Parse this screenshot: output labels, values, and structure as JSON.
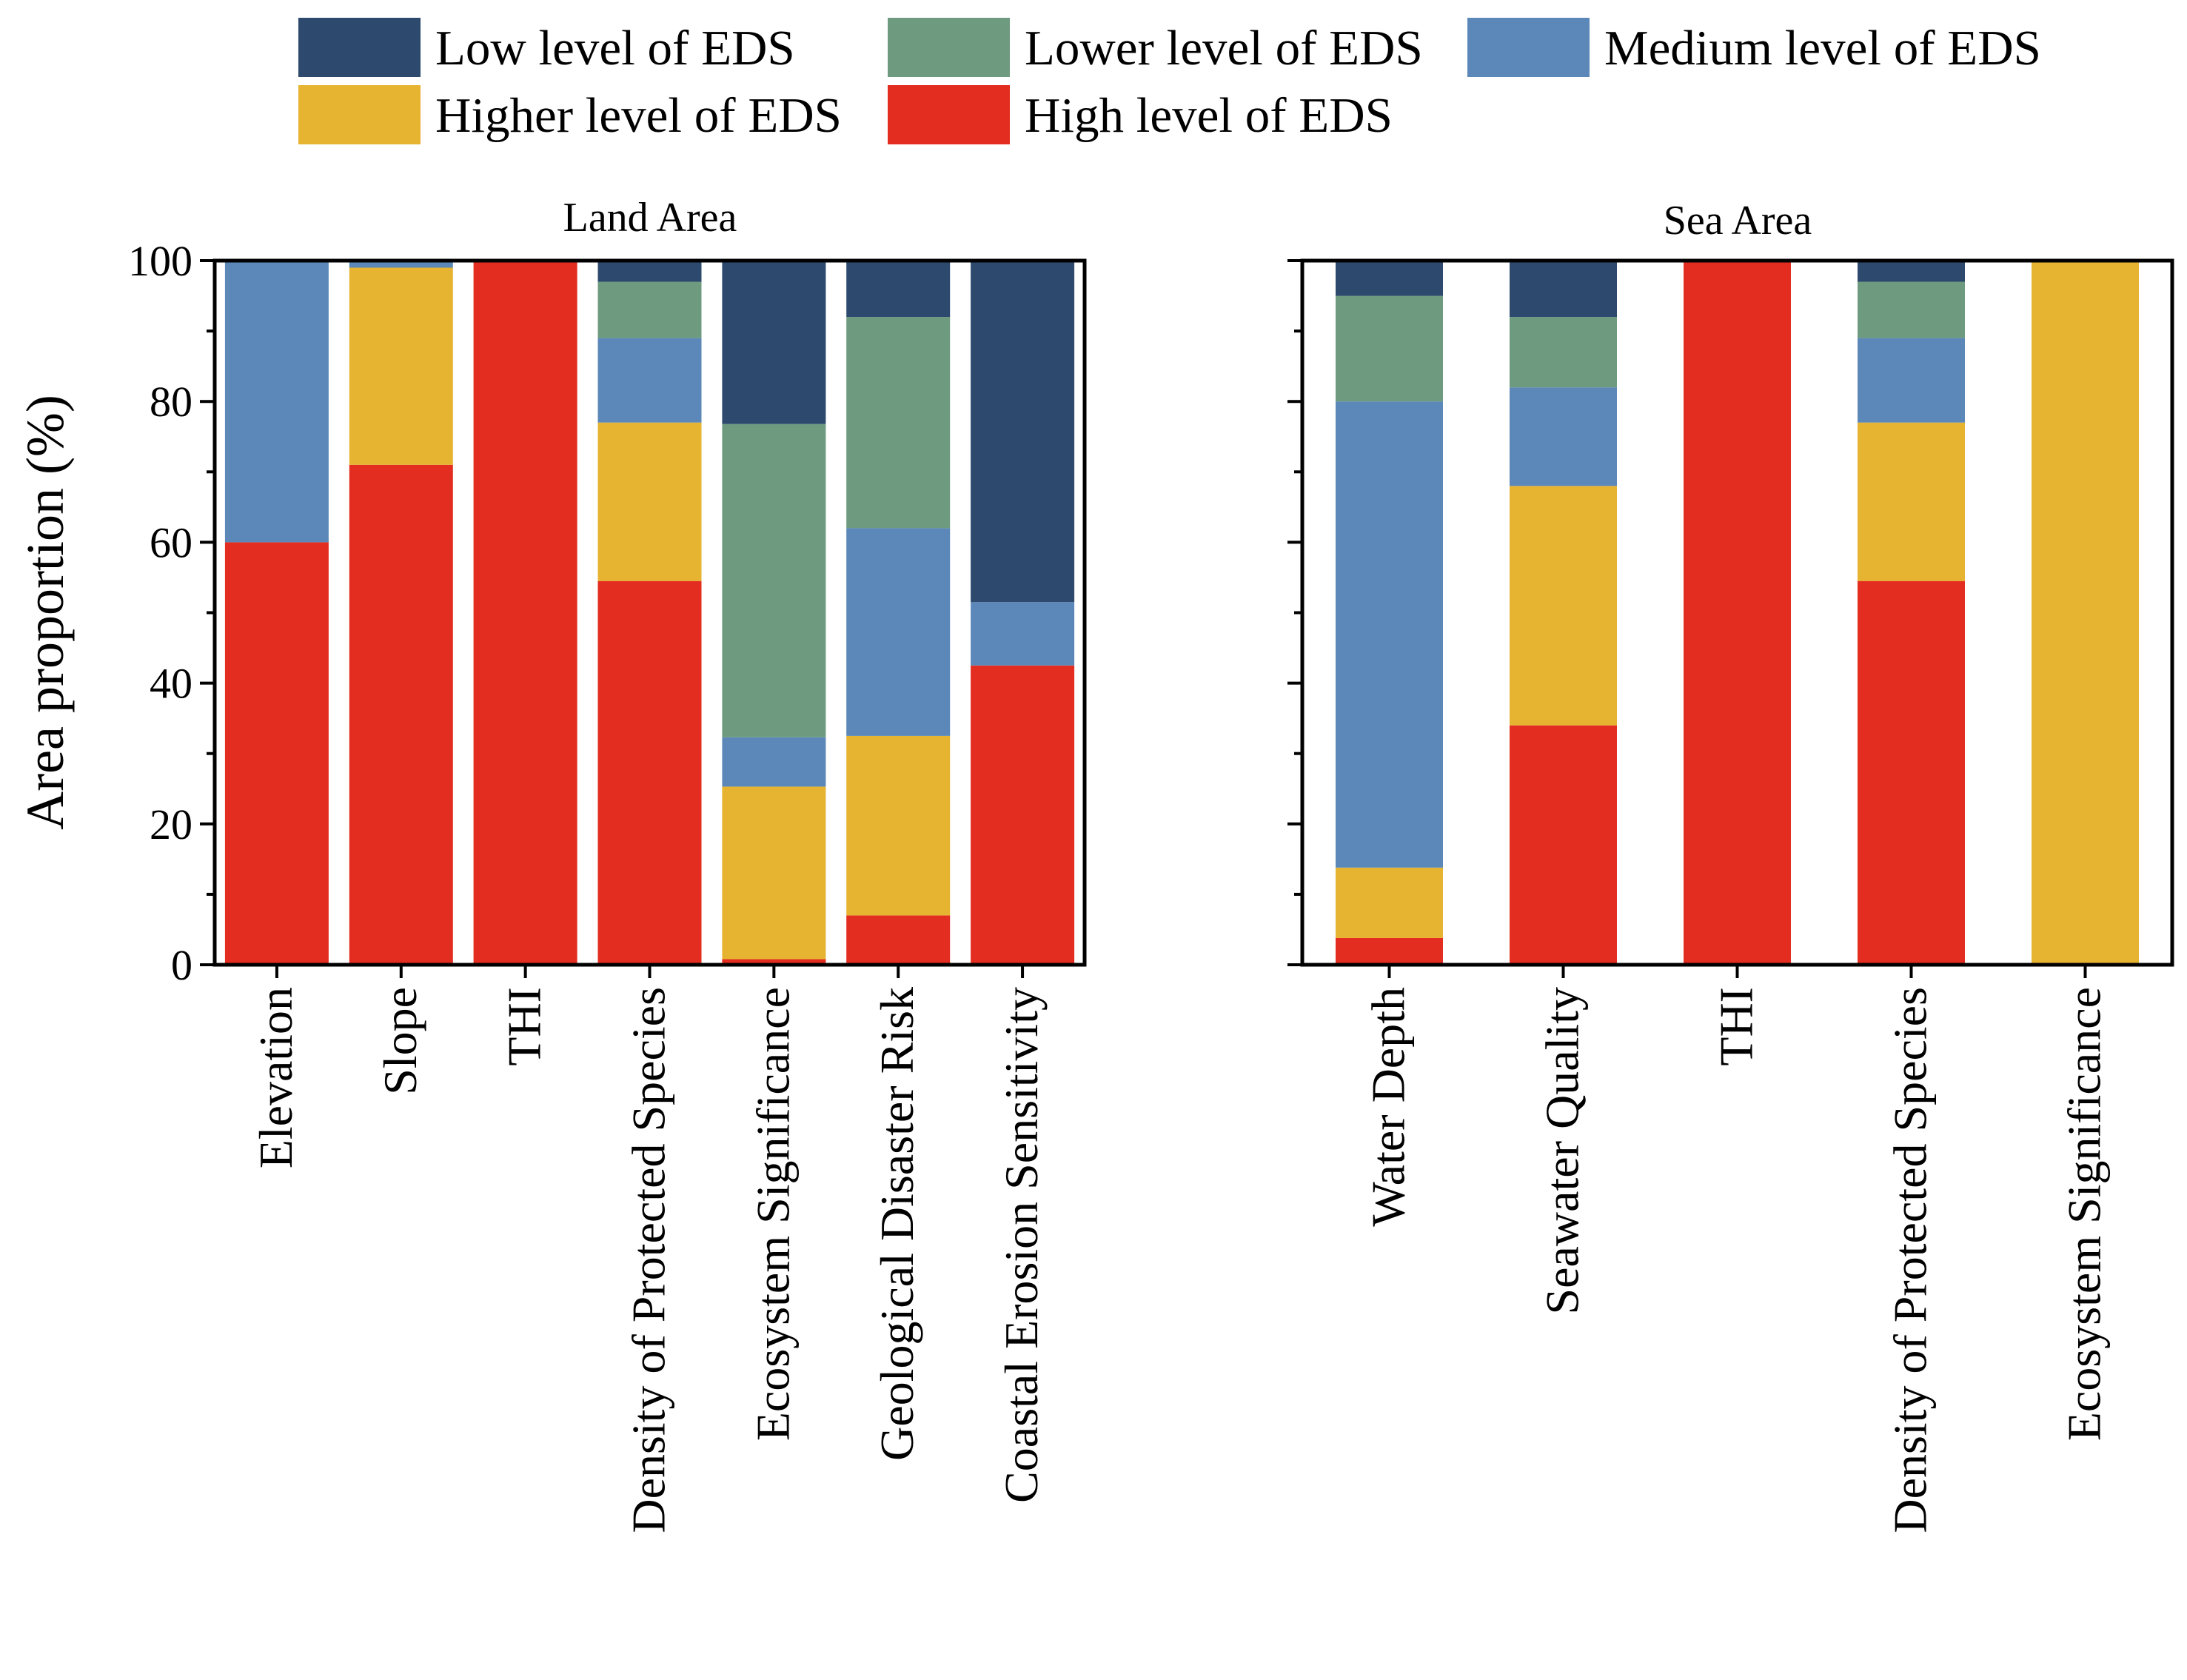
{
  "chart_data": {
    "type": "bar",
    "stacked": true,
    "ylabel": "Area proportion (%)",
    "ylim": [
      0,
      100
    ],
    "yticks": [
      0,
      20,
      40,
      60,
      80,
      100
    ],
    "legend": {
      "placement": "top",
      "entries": [
        {
          "key": "low",
          "label": "Low level of EDS",
          "color": "#2d4a6e"
        },
        {
          "key": "lower",
          "label": "Lower level of EDS",
          "color": "#6e9b80"
        },
        {
          "key": "medium",
          "label": "Medium level of EDS",
          "color": "#5b88b8"
        },
        {
          "key": "higher",
          "label": "Higher level of EDS",
          "color": "#e6b431"
        },
        {
          "key": "high",
          "label": "High level of EDS",
          "color": "#e32d20"
        }
      ]
    },
    "stack_order": [
      "high",
      "higher",
      "medium",
      "lower",
      "low"
    ],
    "panels": [
      {
        "title": "Land Area",
        "categories": [
          "Elevation",
          "Slope",
          "THI",
          "Density of Protected Species",
          "Ecosystem Significance",
          "Geological Disaster Risk",
          "Coastal Erosion Sensitivity"
        ],
        "series": [
          {
            "name": "High level of EDS",
            "key": "high",
            "values": [
              60,
              71,
              100,
              54.5,
              0.8,
              7,
              42.5
            ]
          },
          {
            "name": "Higher level of EDS",
            "key": "higher",
            "values": [
              0,
              28,
              0,
              22.5,
              24.5,
              25.5,
              0
            ]
          },
          {
            "name": "Medium level of EDS",
            "key": "medium",
            "values": [
              40,
              1,
              0,
              12,
              7,
              29.5,
              9
            ]
          },
          {
            "name": "Lower level of EDS",
            "key": "lower",
            "values": [
              0,
              0,
              0,
              8,
              44.5,
              30,
              0
            ]
          },
          {
            "name": "Low level of EDS",
            "key": "low",
            "values": [
              0,
              0,
              0,
              3,
              23.2,
              8,
              48.5
            ]
          }
        ]
      },
      {
        "title": "Sea Area",
        "categories": [
          "Water Depth",
          "Seawater Quality",
          "THI",
          "Density of Protected Species",
          "Ecosystem Significance"
        ],
        "series": [
          {
            "name": "High level of EDS",
            "key": "high",
            "values": [
              3.8,
              34,
              100,
              54.5,
              0
            ]
          },
          {
            "name": "Higher level of EDS",
            "key": "higher",
            "values": [
              10,
              34,
              0,
              22.5,
              100
            ]
          },
          {
            "name": "Medium level of EDS",
            "key": "medium",
            "values": [
              66.2,
              14,
              0,
              12,
              0
            ]
          },
          {
            "name": "Lower level of EDS",
            "key": "lower",
            "values": [
              15,
              10,
              0,
              8,
              0
            ]
          },
          {
            "name": "Low level of EDS",
            "key": "low",
            "values": [
              5,
              8,
              0,
              3,
              0
            ]
          }
        ]
      }
    ]
  }
}
